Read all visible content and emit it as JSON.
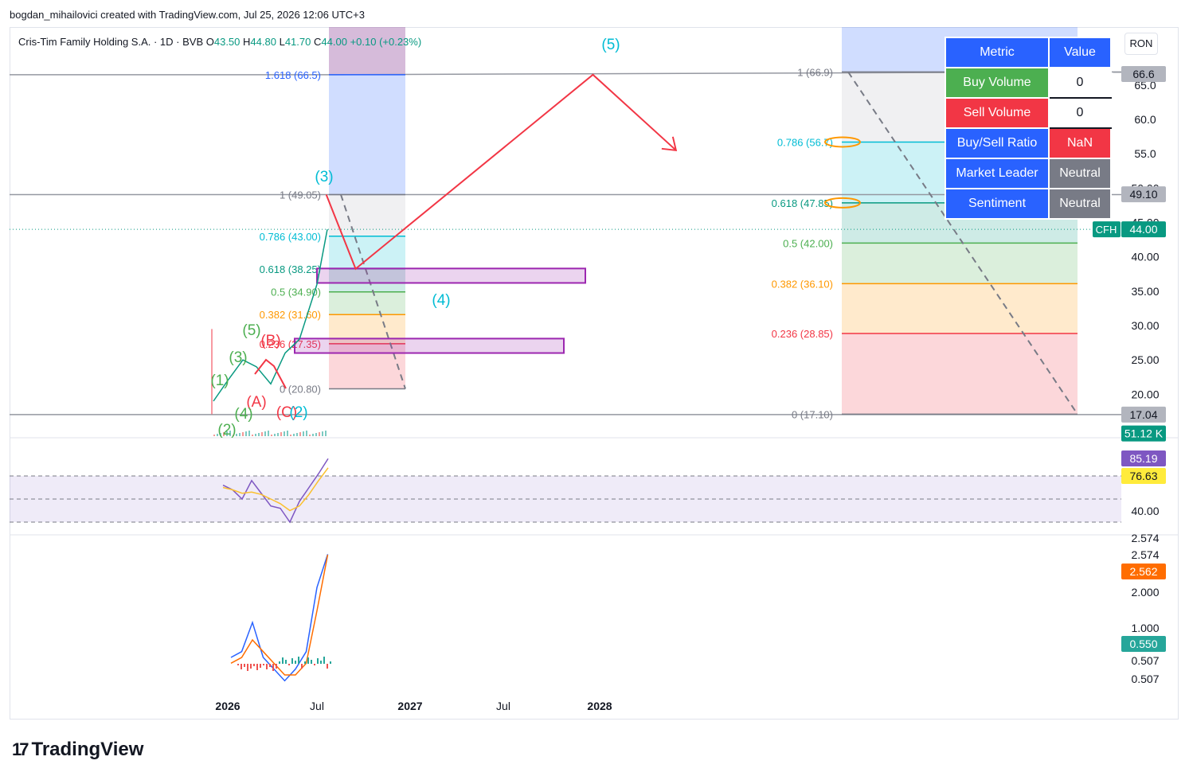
{
  "header": {
    "attribution": "bogdan_mihailovici created with TradingView.com, Jul 25, 2026 12:06 UTC+3",
    "symbol": "Cris-Tim Family Holding S.A. · 1D · BVB",
    "o_label": "O",
    "o_val": "43.50",
    "h_label": "H",
    "h_val": "44.80",
    "l_label": "L",
    "l_val": "41.70",
    "c_label": "C",
    "c_val": "44.00",
    "change": "+0.10 (+0.23%)",
    "currency": "RON"
  },
  "watermark": {
    "logo": "17",
    "text": "TradingView"
  },
  "table": {
    "header": {
      "metric": "Metric",
      "value": "Value"
    },
    "rows": [
      {
        "metric": "Buy Volume",
        "value": "0",
        "metric_color": "#4caf50",
        "value_bg": "#ffffff",
        "value_color": "#131722"
      },
      {
        "metric": "Sell Volume",
        "value": "0",
        "metric_color": "#f23645",
        "value_bg": "#ffffff",
        "value_color": "#131722"
      },
      {
        "metric": "Buy/Sell Ratio",
        "value": "NaN",
        "metric_color": "#2962ff",
        "value_bg": "#f23645",
        "value_color": "#ffffff"
      },
      {
        "metric": "Market Leader",
        "value": "Neutral",
        "metric_color": "#2962ff",
        "value_bg": "#787b86",
        "value_color": "#ffffff"
      },
      {
        "metric": "Sentiment",
        "value": "Neutral",
        "metric_color": "#2962ff",
        "value_bg": "#787b86",
        "value_color": "#ffffff"
      }
    ]
  },
  "chart_data": {
    "type": "line",
    "price_axis": {
      "ticks": [
        "65.0",
        "60.0",
        "55.0",
        "50.00",
        "45.00",
        "40.00",
        "35.00",
        "30.00",
        "25.00",
        "20.00"
      ],
      "badges": [
        {
          "text": "66.6",
          "price": 66.6,
          "bg": "#b2b5be",
          "color": "#131722"
        },
        {
          "text": "49.10",
          "price": 49.1,
          "bg": "#b2b5be",
          "color": "#131722"
        },
        {
          "text": "44.00",
          "price": 44.0,
          "bg": "#089981",
          "color": "#ffffff",
          "tag": "CFH"
        },
        {
          "text": "17.04",
          "price": 17.04,
          "bg": "#b2b5be",
          "color": "#131722"
        },
        {
          "text": "51.12 K",
          "price": 14.3,
          "bg": "#089981",
          "color": "#ffffff"
        }
      ]
    },
    "time_axis": [
      "2026",
      "Jul",
      "2027",
      "Jul",
      "2028"
    ],
    "fib_left": {
      "levels": [
        {
          "label": "1.618 (66.5)",
          "price": 66.5,
          "color": "#2962ff"
        },
        {
          "label": "1 (49.05)",
          "price": 49.05,
          "color": "#787b86"
        },
        {
          "label": "0.786 (43.00)",
          "price": 43.0,
          "color": "#00bcd4"
        },
        {
          "label": "0.618 (38.25)",
          "price": 38.25,
          "color": "#089981"
        },
        {
          "label": "0.5 (34.90)",
          "price": 34.9,
          "color": "#4caf50"
        },
        {
          "label": "0.382 (31.60)",
          "price": 31.6,
          "color": "#ff9800"
        },
        {
          "label": "0.236 (27.35)",
          "price": 27.35,
          "color": "#f23645"
        },
        {
          "label": "0 (20.80)",
          "price": 20.8,
          "color": "#787b86"
        }
      ]
    },
    "fib_right": {
      "levels": [
        {
          "label": "1 (66.9)",
          "price": 66.9,
          "color": "#787b86"
        },
        {
          "label": "0.786 (56.7)",
          "price": 56.7,
          "color": "#00bcd4"
        },
        {
          "label": "0.618 (47.85)",
          "price": 47.85,
          "color": "#089981"
        },
        {
          "label": "0.5 (42.00)",
          "price": 42.0,
          "color": "#4caf50"
        },
        {
          "label": "0.382 (36.10)",
          "price": 36.1,
          "color": "#ff9800"
        },
        {
          "label": "0.236 (28.85)",
          "price": 28.85,
          "color": "#f23645"
        },
        {
          "label": "0 (17.10)",
          "price": 17.1,
          "color": "#787b86"
        }
      ]
    },
    "wave_labels": [
      {
        "text": "(5)",
        "color": "#00bcd4"
      },
      {
        "text": "(3)",
        "color": "#00bcd4"
      },
      {
        "text": "(4)",
        "color": "#00bcd4"
      },
      {
        "text": "(5)",
        "color": "#4caf50"
      },
      {
        "text": "(B)",
        "color": "#f23645"
      },
      {
        "text": "(3)",
        "color": "#4caf50"
      },
      {
        "text": "(1)",
        "color": "#4caf50"
      },
      {
        "text": "(A)",
        "color": "#f23645"
      },
      {
        "text": "(4)",
        "color": "#4caf50"
      },
      {
        "text": "(C)",
        "color": "#f23645"
      },
      {
        "text": "(2)",
        "color": "#00bcd4"
      },
      {
        "text": "(2)",
        "color": "#4caf50"
      }
    ],
    "projection_path": [
      {
        "date": "2026-07-18",
        "price": 49.05
      },
      {
        "date": "2026-09-15",
        "price": 38.25
      },
      {
        "date": "2028-01-05",
        "price": 66.5
      },
      {
        "date": "2028-06-20",
        "price": 55.5
      }
    ],
    "price_series": {
      "x": [
        "2025-12",
        "2026-01",
        "2026-02",
        "2026-03",
        "2026-04",
        "2026-05",
        "2026-06",
        "2026-07",
        "2026-07-20"
      ],
      "values": [
        19.0,
        22.0,
        25.0,
        24.0,
        21.5,
        26.0,
        28.0,
        36.0,
        44.0
      ]
    },
    "rsi": {
      "ticks": [
        "40.00"
      ],
      "badges": [
        {
          "text": "85.19",
          "bg": "#7e57c2",
          "color": "#ffffff"
        },
        {
          "text": "76.63",
          "bg": "#ffeb3b",
          "color": "#131722"
        }
      ],
      "rsi_values": [
        62,
        58,
        50,
        66,
        55,
        44,
        42,
        30,
        48,
        60,
        72,
        85
      ],
      "ma_values": [
        60,
        58,
        55,
        56,
        54,
        50,
        46,
        40,
        44,
        54,
        66,
        77
      ]
    },
    "macd": {
      "ticks": [
        "2.574",
        "2.574",
        "2.000",
        "1.000",
        "0.507",
        "0.507"
      ],
      "badges": [
        {
          "text": "2.562",
          "bg": "#ff6d00",
          "color": "#ffffff"
        },
        {
          "text": "0.550",
          "bg": "#26a69a",
          "color": "#ffffff"
        }
      ],
      "line_values": [
        0.8,
        0.9,
        1.4,
        0.8,
        0.6,
        0.4,
        0.6,
        0.9,
        2.0,
        2.57
      ],
      "signal_values": [
        0.7,
        0.8,
        1.1,
        0.9,
        0.7,
        0.5,
        0.5,
        0.7,
        1.6,
        2.56
      ]
    }
  }
}
